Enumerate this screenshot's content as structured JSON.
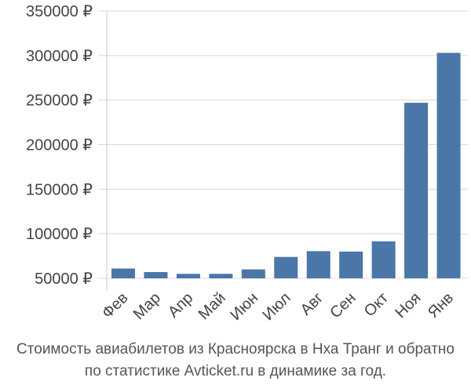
{
  "chart_data": {
    "type": "bar",
    "categories": [
      "Фев",
      "Мар",
      "Апр",
      "Май",
      "Июн",
      "Июл",
      "Авг",
      "Сен",
      "Окт",
      "Ноя",
      "Янв"
    ],
    "values": [
      61000,
      57000,
      55000,
      55000,
      60000,
      74000,
      80500,
      80000,
      91500,
      247000,
      303000
    ],
    "yticks": [
      "50000 ₽",
      "100000 ₽",
      "150000 ₽",
      "200000 ₽",
      "250000 ₽",
      "300000 ₽",
      "350000 ₽"
    ],
    "ytick_values": [
      50000,
      100000,
      150000,
      200000,
      250000,
      300000,
      350000
    ],
    "ylim": [
      40000,
      350000
    ],
    "grid": true,
    "bar_color": "#4a76a8"
  },
  "caption": {
    "line1": "Стоимость авиабилетов из Красноярска в Нха Транг и обратно",
    "line2": "по статистике Avticket.ru в динамике за год."
  }
}
